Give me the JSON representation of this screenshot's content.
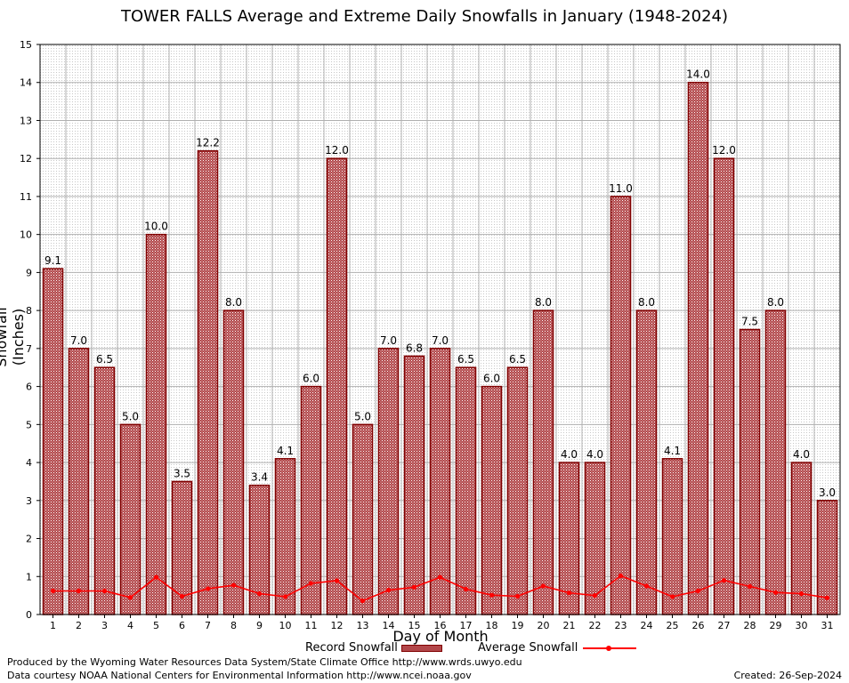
{
  "page": {
    "credit_line1": "Produced by the Wyoming Water Resources Data System/State Climate Office http://www.wrds.uwyo.edu",
    "credit_line2": "Data courtesy NOAA National Centers for Environmental Information http://www.ncei.noaa.gov",
    "created": "Created:  26-Sep-2024"
  },
  "colors": {
    "bar_fill": "#b2474a",
    "bar_edge": "#800000",
    "avg_line": "#ff0000",
    "grid": "#b0b0b0"
  },
  "chart_data": {
    "type": "bar",
    "title": "TOWER FALLS Average and Extreme Daily Snowfalls in January (1948-2024)",
    "xlabel": "Day of Month",
    "ylabel": "Snowfall (Inches)",
    "ylim": [
      0,
      15
    ],
    "yticks": [
      0,
      1,
      2,
      3,
      4,
      5,
      6,
      7,
      8,
      9,
      10,
      11,
      12,
      13,
      14,
      15
    ],
    "grid": true,
    "legend_position": "bottom",
    "categories": [
      "1",
      "2",
      "3",
      "4",
      "5",
      "6",
      "7",
      "8",
      "9",
      "10",
      "11",
      "12",
      "13",
      "14",
      "15",
      "16",
      "17",
      "18",
      "19",
      "20",
      "21",
      "22",
      "23",
      "24",
      "25",
      "26",
      "27",
      "28",
      "29",
      "30",
      "31"
    ],
    "series": [
      {
        "name": "Record Snowfall",
        "kind": "bar",
        "values": [
          9.1,
          7.0,
          6.5,
          5.0,
          10.0,
          3.5,
          12.2,
          8.0,
          3.4,
          4.1,
          6.0,
          12.0,
          5.0,
          7.0,
          6.8,
          7.0,
          6.5,
          6.0,
          6.5,
          8.0,
          4.0,
          4.0,
          11.0,
          8.0,
          4.1,
          14.0,
          12.0,
          7.5,
          8.0,
          4.0,
          3.0
        ],
        "labels": [
          "9.1",
          "7.0",
          "6.5",
          "5.0",
          "10.0",
          "3.5",
          "12.2",
          "8.0",
          "3.4",
          "4.1",
          "6.0",
          "12.0",
          "5.0",
          "7.0",
          "6.8",
          "7.0",
          "6.5",
          "6.0",
          "6.5",
          "8.0",
          "4.0",
          "4.0",
          "11.0",
          "8.0",
          "4.1",
          "14.0",
          "12.0",
          "7.5",
          "8.0",
          "4.0",
          "3.0"
        ]
      },
      {
        "name": "Average Snowfall",
        "kind": "line",
        "values": [
          0.62,
          0.62,
          0.62,
          0.45,
          0.98,
          0.48,
          0.68,
          0.77,
          0.55,
          0.47,
          0.82,
          0.89,
          0.36,
          0.64,
          0.72,
          0.98,
          0.67,
          0.51,
          0.48,
          0.75,
          0.57,
          0.5,
          1.02,
          0.75,
          0.47,
          0.62,
          0.9,
          0.74,
          0.58,
          0.55,
          0.44
        ]
      }
    ]
  }
}
